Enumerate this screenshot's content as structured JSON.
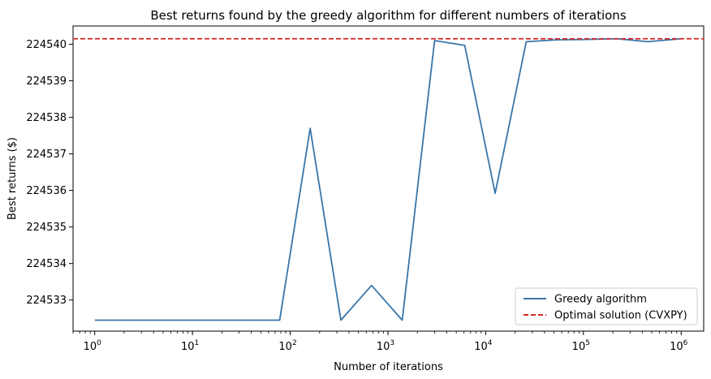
{
  "chart_data": {
    "type": "line",
    "title": "Best returns found by the greedy algorithm for different numbers of iterations",
    "xlabel": "Number of iterations",
    "ylabel": "Best returns ($)",
    "xscale": "log",
    "xlim": [
      0.6,
      1700000
    ],
    "ylim": [
      224532.15,
      224540.5
    ],
    "grid": false,
    "legend_position": "lower-right",
    "x_ticks": [
      {
        "value": 1,
        "base": "10",
        "exp": "0"
      },
      {
        "value": 10,
        "base": "10",
        "exp": "1"
      },
      {
        "value": 100,
        "base": "10",
        "exp": "2"
      },
      {
        "value": 1000,
        "base": "10",
        "exp": "3"
      },
      {
        "value": 10000,
        "base": "10",
        "exp": "4"
      },
      {
        "value": 100000,
        "base": "10",
        "exp": "5"
      },
      {
        "value": 1000000,
        "base": "10",
        "exp": "6"
      }
    ],
    "y_ticks": [
      224533,
      224534,
      224535,
      224536,
      224537,
      224538,
      224539,
      224540
    ],
    "y_tick_labels": [
      "224533",
      "224534",
      "224535",
      "224536",
      "224537",
      "224538",
      "224539",
      "224540"
    ],
    "series": [
      {
        "name": "Greedy algorithm",
        "color": "#3a75a8",
        "style": "solid",
        "x": [
          1,
          2,
          4,
          8,
          16,
          32,
          64,
          78,
          160,
          330,
          680,
          1400,
          3000,
          6100,
          12500,
          26000,
          53000,
          110000,
          220000,
          460000,
          1000000
        ],
        "y": [
          224532.45,
          224532.45,
          224532.45,
          224532.45,
          224532.45,
          224532.45,
          224532.45,
          224532.45,
          224537.7,
          224532.45,
          224533.4,
          224532.45,
          224540.1,
          224539.97,
          224535.92,
          224540.07,
          224540.12,
          224540.13,
          224540.15,
          224540.07,
          224540.15
        ]
      },
      {
        "name": "Optimal solution (CVXPY)",
        "color": "#d62728",
        "style": "dashed",
        "y_constant": 224540.15
      }
    ]
  }
}
